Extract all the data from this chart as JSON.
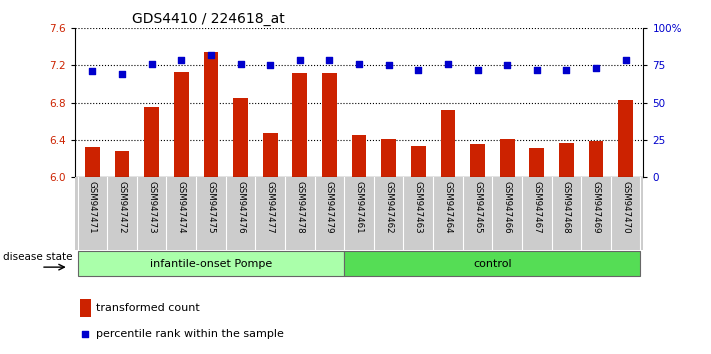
{
  "title": "GDS4410 / 224618_at",
  "samples": [
    "GSM947471",
    "GSM947472",
    "GSM947473",
    "GSM947474",
    "GSM947475",
    "GSM947476",
    "GSM947477",
    "GSM947478",
    "GSM947479",
    "GSM947461",
    "GSM947462",
    "GSM947463",
    "GSM947464",
    "GSM947465",
    "GSM947466",
    "GSM947467",
    "GSM947468",
    "GSM947469",
    "GSM947470"
  ],
  "bar_values": [
    6.32,
    6.28,
    6.75,
    7.13,
    7.35,
    6.85,
    6.47,
    7.12,
    7.12,
    6.45,
    6.41,
    6.33,
    6.72,
    6.35,
    6.41,
    6.31,
    6.37,
    6.39,
    6.83
  ],
  "percentile_values": [
    71,
    69,
    76,
    79,
    82,
    76,
    75,
    79,
    79,
    76,
    75,
    72,
    76,
    72,
    75,
    72,
    72,
    73,
    79
  ],
  "ylim_left": [
    6.0,
    7.6
  ],
  "ylim_right": [
    0,
    100
  ],
  "yticks_left": [
    6.0,
    6.4,
    6.8,
    7.2,
    7.6
  ],
  "yticks_right": [
    0,
    25,
    50,
    75,
    100
  ],
  "ytick_labels_right": [
    "0",
    "25",
    "50",
    "75",
    "100%"
  ],
  "bar_color": "#cc2200",
  "dot_color": "#0000cc",
  "grid_color": "#000000",
  "background_color": "#ffffff",
  "tick_area_color": "#cccccc",
  "group1_label": "infantile-onset Pompe",
  "group2_label": "control",
  "group1_indices": [
    0,
    1,
    2,
    3,
    4,
    5,
    6,
    7,
    8
  ],
  "group2_indices": [
    9,
    10,
    11,
    12,
    13,
    14,
    15,
    16,
    17,
    18
  ],
  "group1_color": "#aaffaa",
  "group2_color": "#55dd55",
  "disease_state_label": "disease state",
  "legend_bar_label": "transformed count",
  "legend_dot_label": "percentile rank within the sample",
  "title_fontsize": 10,
  "axis_fontsize": 7.5,
  "label_fontsize": 8
}
